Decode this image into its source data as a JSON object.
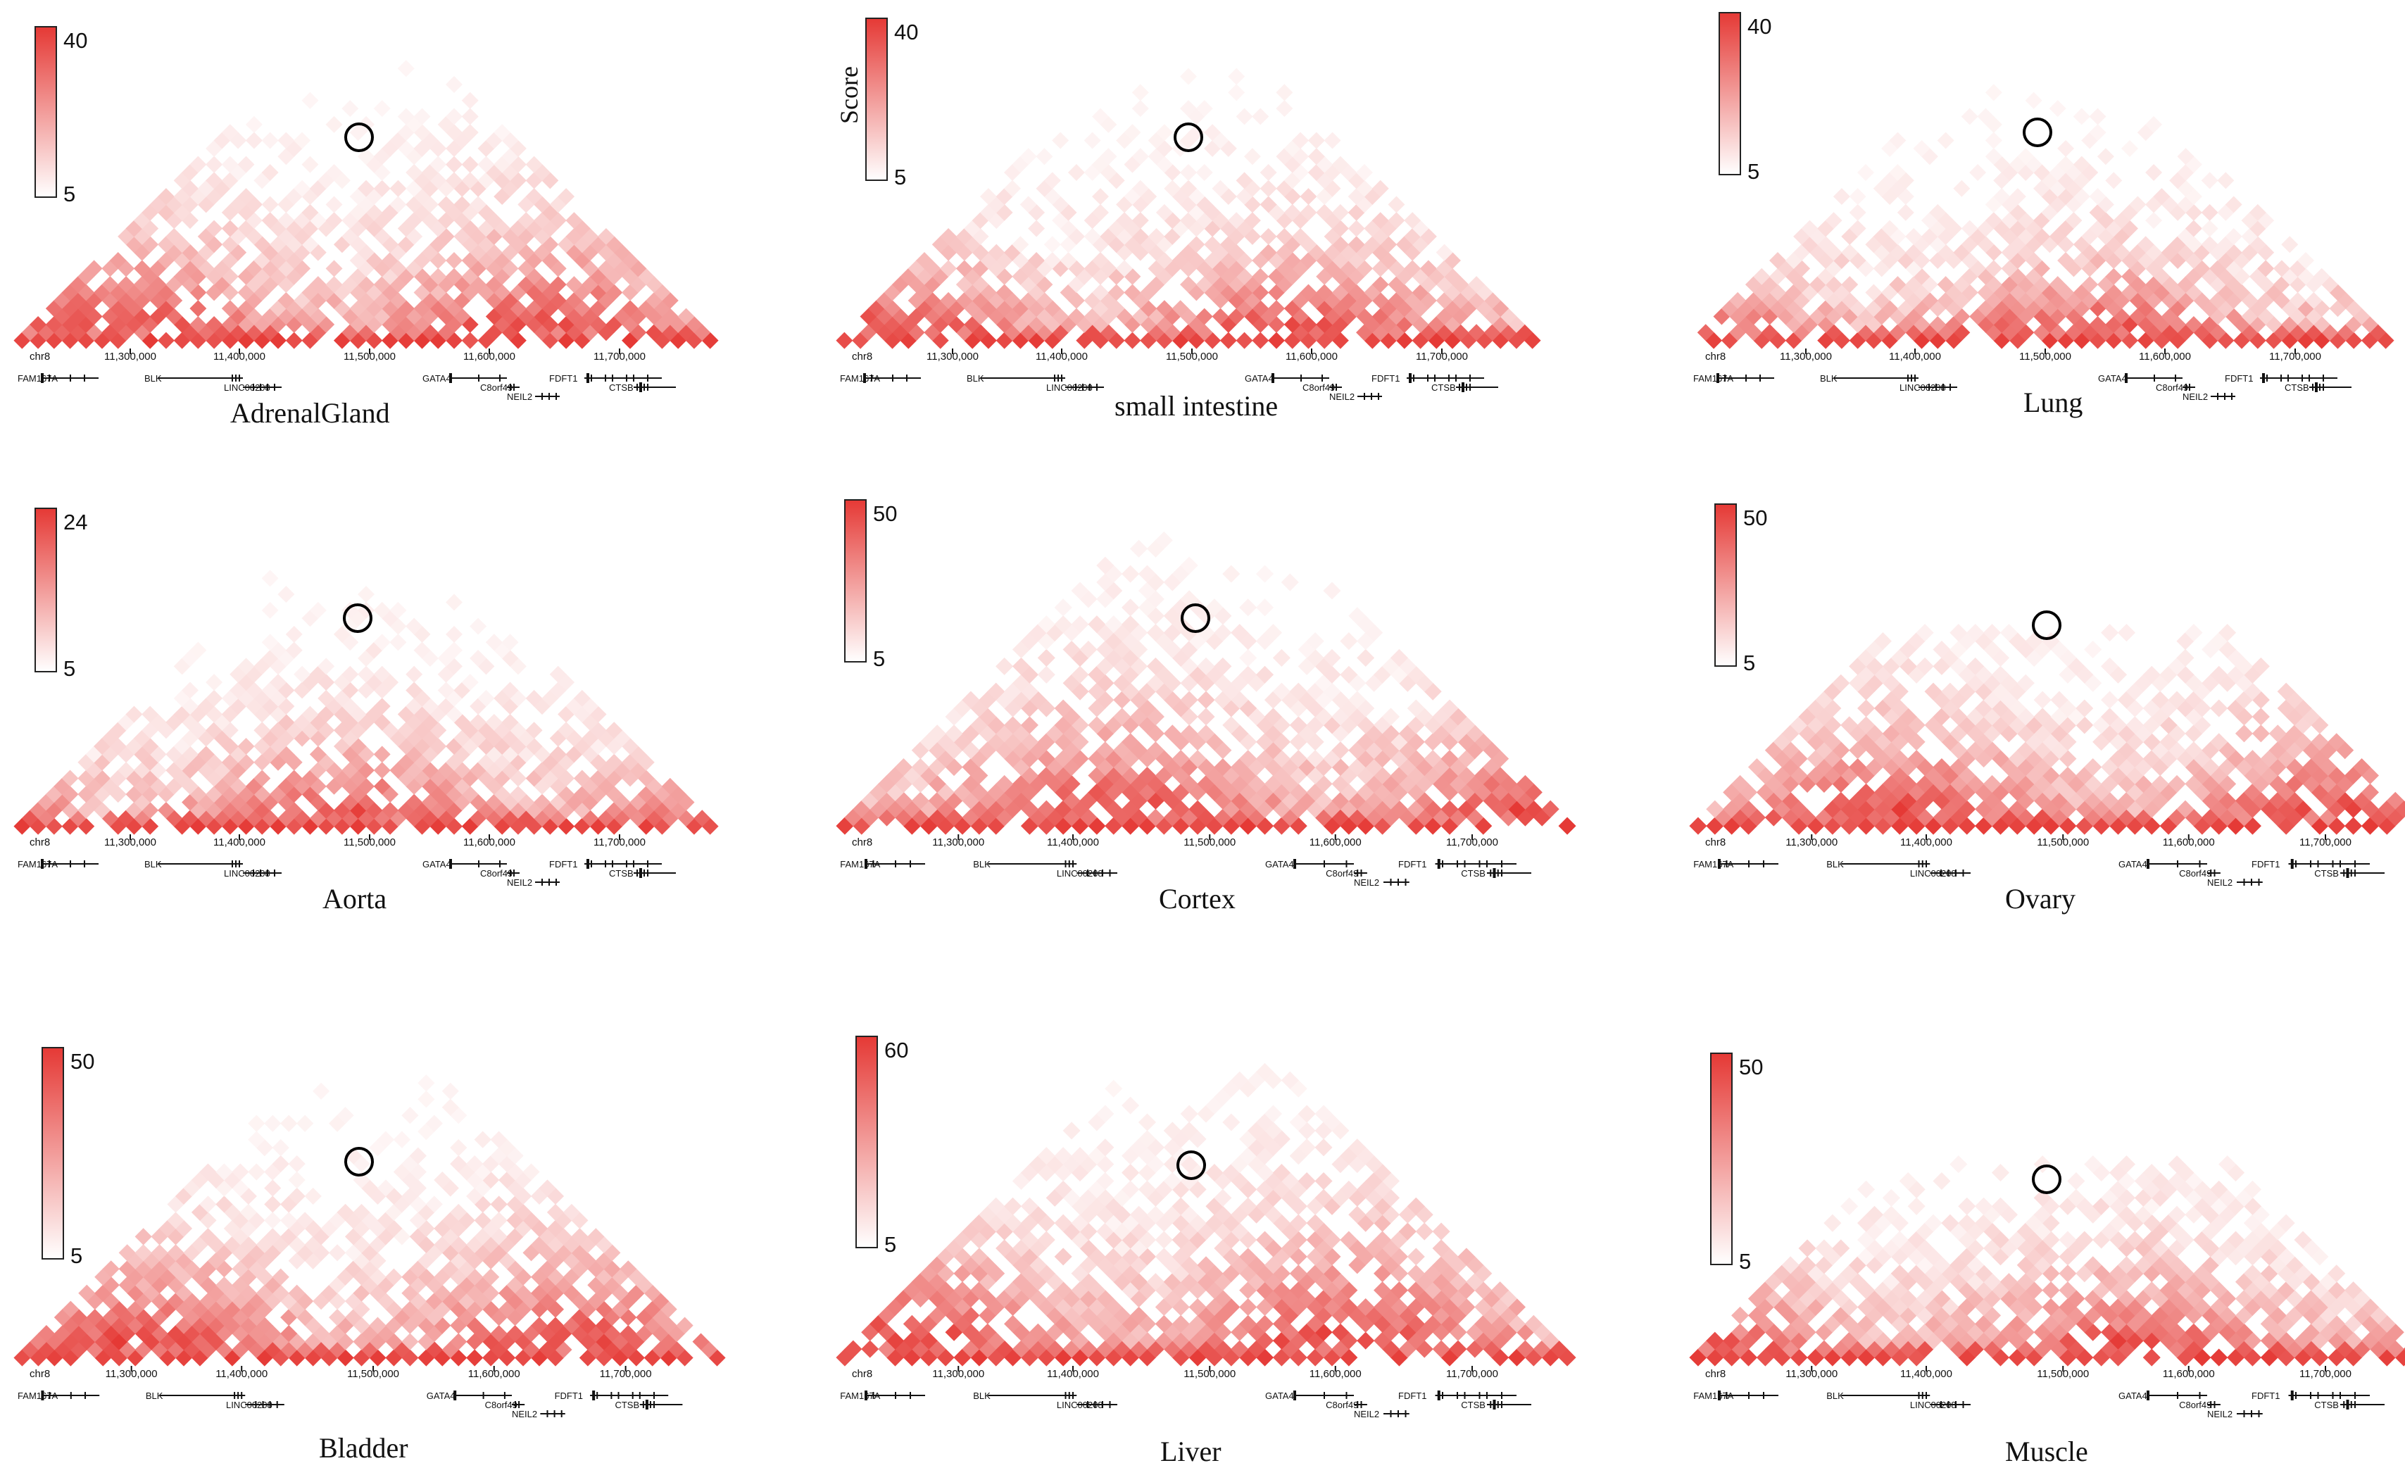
{
  "chromosome": "chr8",
  "axis_ticks": [
    "11,300,000",
    "11,400,000",
    "11,500,000",
    "11,600,000",
    "11,700,000"
  ],
  "genes": [
    "FAM167A",
    "BLK",
    "LINC00208",
    "GATA4",
    "C8orf49",
    "NEIL2",
    "FDFT1",
    "CTSB"
  ],
  "colormap": {
    "low_color": "#ffffff",
    "high_color": "#e53935"
  },
  "colorbar_title": "Score",
  "panels": [
    {
      "tissue": "AdrenalGland",
      "min": "5",
      "max": "40"
    },
    {
      "tissue": "small intestine",
      "min": "5",
      "max": "40"
    },
    {
      "tissue": "Lung",
      "min": "5",
      "max": "40"
    },
    {
      "tissue": "Aorta",
      "min": "5",
      "max": "24"
    },
    {
      "tissue": "Cortex",
      "min": "5",
      "max": "50"
    },
    {
      "tissue": "Ovary",
      "min": "5",
      "max": "50"
    },
    {
      "tissue": "Bladder",
      "min": "5",
      "max": "50"
    },
    {
      "tissue": "Liver",
      "min": "5",
      "max": "60"
    },
    {
      "tissue": "Muscle",
      "min": "5",
      "max": "50"
    }
  ]
}
